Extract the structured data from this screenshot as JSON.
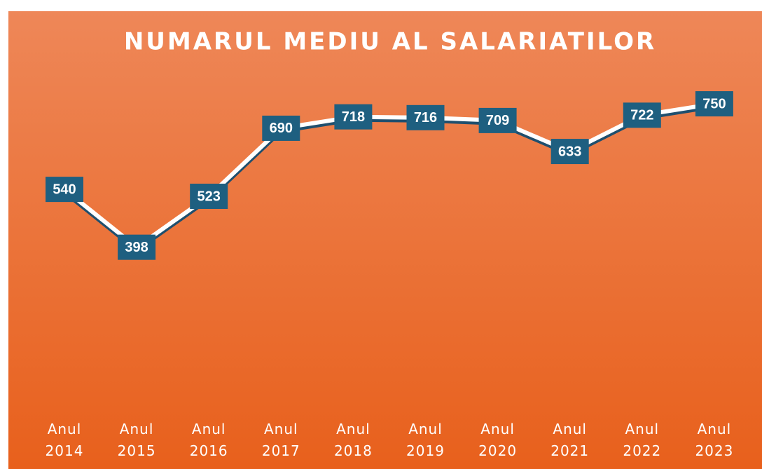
{
  "chart_data": {
    "type": "line",
    "title": "NUMARUL MEDIU AL SALARIATILOR",
    "categories": [
      "Anul 2014",
      "Anul 2015",
      "Anul 2016",
      "Anul 2017",
      "Anul 2018",
      "Anul 2019",
      "Anul 2020",
      "Anul 2021",
      "Anul 2022",
      "Anul 2023"
    ],
    "series": [
      {
        "name": "Numarul mediu al salariatilor",
        "color": "#ffffff",
        "values": [
          540,
          398,
          523,
          690,
          718,
          716,
          709,
          633,
          722,
          750
        ]
      }
    ],
    "ylim": [
      0,
      800
    ]
  }
}
